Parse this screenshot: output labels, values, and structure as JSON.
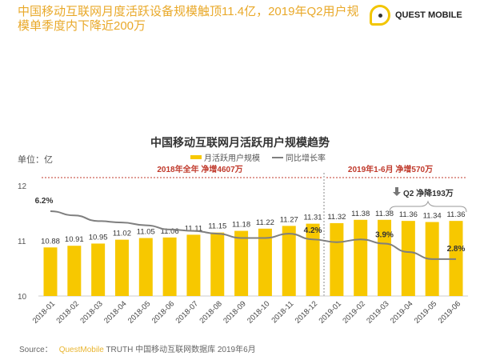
{
  "headline": "中国移动互联网月度活跃设备规模触顶11.4亿，2019年Q2用户规模单季度内下降近200万",
  "logo": {
    "text": "QUEST MOBILE"
  },
  "colors": {
    "bar": "#F7C800",
    "line": "#7F7F7F",
    "annotation": "#C0392B",
    "headline": "#E9A92A"
  },
  "chart_data": {
    "type": "bar",
    "title": "中国移动互联网月活跃用户规模趋势",
    "unit_label": "单位：亿",
    "categories": [
      "2018-01",
      "2018-02",
      "2018-03",
      "2018-04",
      "2018-05",
      "2018-06",
      "2018-07",
      "2018-08",
      "2018-09",
      "2018-10",
      "2018-11",
      "2018-12",
      "2019-01",
      "2019-02",
      "2019-03",
      "2019-04",
      "2019-05",
      "2019-06"
    ],
    "series": [
      {
        "name": "月活跃用户规模",
        "type": "bar",
        "values": [
          10.88,
          10.91,
          10.95,
          11.02,
          11.05,
          11.06,
          11.11,
          11.15,
          11.18,
          11.22,
          11.27,
          11.31,
          11.32,
          11.38,
          11.38,
          11.36,
          11.34,
          11.36
        ]
      },
      {
        "name": "同比增长率",
        "type": "line",
        "unit": "%",
        "values": [
          6.2,
          5.9,
          5.5,
          5.4,
          5.2,
          4.9,
          4.8,
          4.6,
          4.3,
          4.3,
          4.6,
          4.2,
          4.0,
          4.2,
          3.9,
          3.3,
          2.8,
          2.8
        ],
        "labels": [
          {
            "index": 0,
            "text": "6.2%"
          },
          {
            "index": 11,
            "text": "4.2%"
          },
          {
            "index": 14,
            "text": "3.9%"
          },
          {
            "index": 17,
            "text": "2.8%"
          }
        ]
      }
    ],
    "ylim": [
      10,
      12
    ],
    "yticks": [
      "10",
      "11",
      "12"
    ],
    "legend_placement": "top-center",
    "grid": false,
    "annotations": {
      "period1": "2018年全年  净增4607万",
      "period2": "2019年1-6月  净增570万",
      "q2": "Q2 净降193万"
    }
  },
  "source": {
    "label": "Source：",
    "brand": "QuestMobile",
    "text": "TRUTH 中国移动互联网数据库 2019年6月"
  }
}
